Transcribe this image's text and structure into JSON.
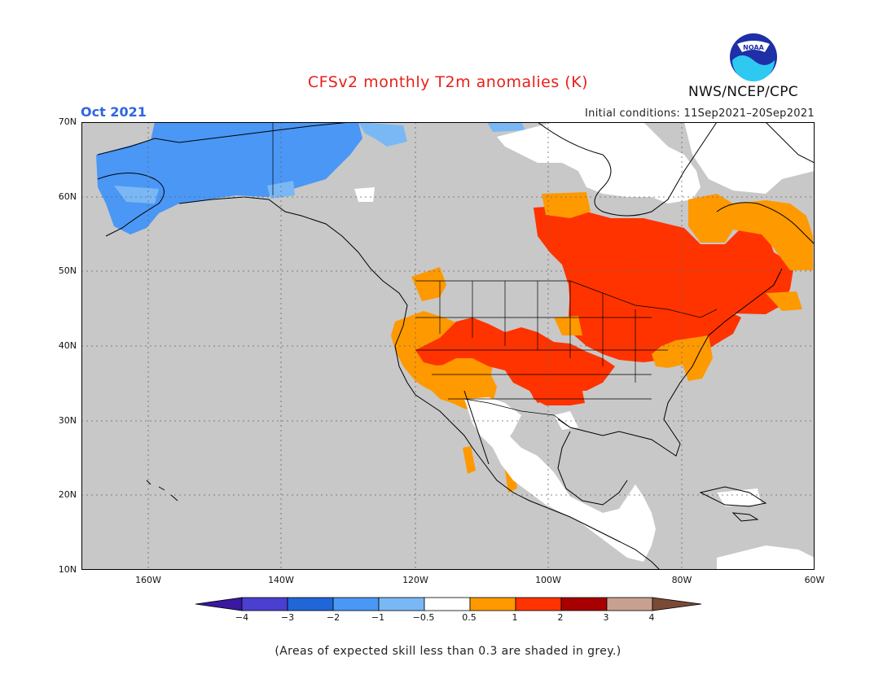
{
  "title": "CFSv2 monthly T2m anomalies (K)",
  "valid_month": "Oct 2021",
  "initial_conditions": "Initial conditions: 11Sep2021–20Sep2021",
  "agency": "NWS/NCEP/CPC",
  "logo_text": "NOAA",
  "footnote": "(Areas of expected skill less than 0.3 are shaded in grey.)",
  "map": {
    "lon_range": [
      -170,
      -60
    ],
    "lat_range": [
      10,
      70
    ],
    "grid_style": "dotted",
    "lat_labels": [
      "70N",
      "60N",
      "50N",
      "40N",
      "30N",
      "20N",
      "10N"
    ],
    "lon_labels": [
      "160W",
      "140W",
      "120W",
      "100W",
      "80W",
      "60W"
    ],
    "land_color_low_skill": "#c8c8c8",
    "ocean_color": "#c8c8c8"
  },
  "colorbar": {
    "tick_labels": [
      "−4",
      "−3",
      "−2",
      "−1",
      "−0.5",
      "0.5",
      "1",
      "2",
      "3",
      "4"
    ],
    "bins": [
      {
        "range": "< -4",
        "color": "#3a18a0"
      },
      {
        "range": "-4 to -3",
        "color": "#4a3fd0"
      },
      {
        "range": "-3 to -2",
        "color": "#1f66d8"
      },
      {
        "range": "-2 to -1",
        "color": "#4a97f5"
      },
      {
        "range": "-1 to -0.5",
        "color": "#7ab8f5"
      },
      {
        "range": "-0.5 to 0.5",
        "color": "#ffffff"
      },
      {
        "range": "0.5 to 1",
        "color": "#ff9900"
      },
      {
        "range": "1 to 2",
        "color": "#ff3300"
      },
      {
        "range": "2 to 3",
        "color": "#a80000"
      },
      {
        "range": "3 to 4",
        "color": "#c8a090"
      },
      {
        "range": "> 4",
        "color": "#7a4a36"
      }
    ]
  },
  "anomaly_regions": [
    {
      "name": "alaska-cold",
      "category": "-2 to -1",
      "color": "#4a97f5"
    },
    {
      "name": "alaska-edge-cool",
      "category": "-1 to -0.5",
      "color": "#7ab8f5"
    },
    {
      "name": "eastern-canada-warm",
      "category": "1 to 2",
      "color": "#ff3300"
    },
    {
      "name": "labrador-warm",
      "category": "0.5 to 1",
      "color": "#ff9900"
    },
    {
      "name": "great-lakes-northeast-warm",
      "category": "1 to 2",
      "color": "#ff3300"
    },
    {
      "name": "mid-atlantic-warm",
      "category": "0.5 to 1",
      "color": "#ff9900"
    },
    {
      "name": "great-basin-warm",
      "category": "0.5 to 1",
      "color": "#ff9900"
    },
    {
      "name": "rockies-warm",
      "category": "1 to 2",
      "color": "#ff3300"
    },
    {
      "name": "southern-plains-warm",
      "category": "1 to 2",
      "color": "#ff3300"
    },
    {
      "name": "southwest-warm",
      "category": "0.5 to 1",
      "color": "#ff9900"
    },
    {
      "name": "hudson-bay-near-normal",
      "category": "-0.5 to 0.5",
      "color": "#ffffff"
    },
    {
      "name": "mexico-near-normal",
      "category": "-0.5 to 0.5",
      "color": "#ffffff"
    },
    {
      "name": "central-america-near-normal",
      "category": "-0.5 to 0.5",
      "color": "#ffffff"
    }
  ]
}
